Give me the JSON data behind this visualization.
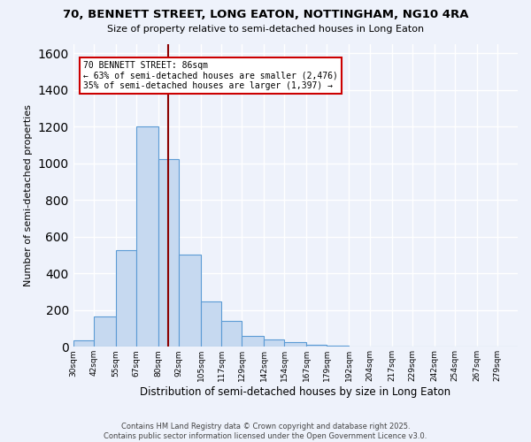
{
  "title_line1": "70, BENNETT STREET, LONG EATON, NOTTINGHAM, NG10 4RA",
  "title_line2": "Size of property relative to semi-detached houses in Long Eaton",
  "xlabel": "Distribution of semi-detached houses by size in Long Eaton",
  "ylabel": "Number of semi-detached properties",
  "bin_labels": [
    "30sqm",
    "42sqm",
    "55sqm",
    "67sqm",
    "80sqm",
    "92sqm",
    "105sqm",
    "117sqm",
    "129sqm",
    "142sqm",
    "154sqm",
    "167sqm",
    "179sqm",
    "192sqm",
    "204sqm",
    "217sqm",
    "229sqm",
    "242sqm",
    "254sqm",
    "267sqm",
    "279sqm"
  ],
  "bin_edges": [
    30,
    42,
    55,
    67,
    80,
    92,
    105,
    117,
    129,
    142,
    154,
    167,
    179,
    192,
    204,
    217,
    229,
    242,
    254,
    267,
    279,
    291
  ],
  "bar_heights": [
    35,
    165,
    525,
    1200,
    1025,
    505,
    245,
    140,
    60,
    38,
    25,
    12,
    8,
    0,
    0,
    0,
    0,
    0,
    0,
    0,
    0
  ],
  "bar_color": "#c6d9f0",
  "bar_edge_color": "#5b9bd5",
  "property_size": 86,
  "vline_color": "#8b0000",
  "annotation_text": "70 BENNETT STREET: 86sqm\n← 63% of semi-detached houses are smaller (2,476)\n35% of semi-detached houses are larger (1,397) →",
  "annotation_box_color": "white",
  "annotation_box_edge_color": "#cc0000",
  "ylim": [
    0,
    1650
  ],
  "yticks": [
    0,
    200,
    400,
    600,
    800,
    1000,
    1200,
    1400,
    1600
  ],
  "background_color": "#eef2fb",
  "grid_color": "white",
  "footer": "Contains HM Land Registry data © Crown copyright and database right 2025.\nContains public sector information licensed under the Open Government Licence v3.0."
}
